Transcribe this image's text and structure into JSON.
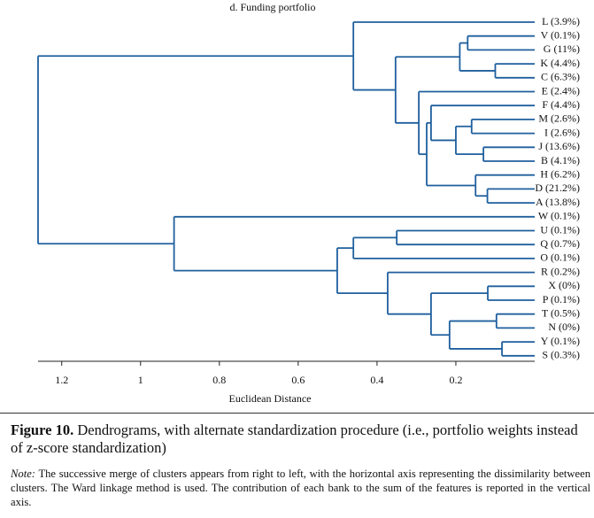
{
  "chart_data": {
    "type": "dendrogram",
    "title": "d. Funding portfolio",
    "xlabel": "Euclidean Distance",
    "color": "#1f5f9e",
    "orientation": "right-to-left",
    "xlim": [
      1.26,
      0
    ],
    "xticks": [
      1.2,
      1,
      0.8,
      0.6,
      0.4,
      0.2
    ],
    "tree": {
      "height": 1.26,
      "children": [
        {
          "height": 0.46,
          "children": [
            {
              "label": "L (3.9%)"
            },
            {
              "height": 0.353,
              "children": [
                {
                  "height": 0.19,
                  "children": [
                    {
                      "height": 0.17,
                      "children": [
                        {
                          "label": "V (0.1%)"
                        },
                        {
                          "label": "G (11%)"
                        }
                      ]
                    },
                    {
                      "height": 0.1,
                      "children": [
                        {
                          "label": "K (4.4%)"
                        },
                        {
                          "label": "C (6.3%)"
                        }
                      ]
                    }
                  ]
                },
                {
                  "height": 0.294,
                  "children": [
                    {
                      "label": "E (2.4%)"
                    },
                    {
                      "height": 0.274,
                      "children": [
                        {
                          "height": 0.263,
                          "children": [
                            {
                              "label": "F (4.4%)"
                            },
                            {
                              "height": 0.2,
                              "children": [
                                {
                                  "height": 0.16,
                                  "children": [
                                    {
                                      "label": "M (2.6%)"
                                    },
                                    {
                                      "label": "I (2.6%)"
                                    }
                                  ]
                                },
                                {
                                  "height": 0.13,
                                  "children": [
                                    {
                                      "label": "J (13.6%)"
                                    },
                                    {
                                      "label": "B (4.1%)"
                                    }
                                  ]
                                }
                              ]
                            }
                          ]
                        },
                        {
                          "height": 0.15,
                          "children": [
                            {
                              "label": "H (6.2%)"
                            },
                            {
                              "height": 0.12,
                              "children": [
                                {
                                  "label": "D (21.2%)"
                                },
                                {
                                  "label": "A (13.8%)"
                                }
                              ]
                            }
                          ]
                        }
                      ]
                    }
                  ]
                }
              ]
            }
          ]
        },
        {
          "height": 0.915,
          "children": [
            {
              "label": "W (0.1%)"
            },
            {
              "height": 0.501,
              "children": [
                {
                  "height": 0.46,
                  "children": [
                    {
                      "height": 0.35,
                      "children": [
                        {
                          "label": "U (0.1%)"
                        },
                        {
                          "label": "Q (0.7%)"
                        }
                      ]
                    },
                    {
                      "label": "O (0.1%)"
                    }
                  ]
                },
                {
                  "height": 0.373,
                  "children": [
                    {
                      "label": "R (0.2%)"
                    },
                    {
                      "height": 0.263,
                      "children": [
                        {
                          "height": 0.119,
                          "children": [
                            {
                              "label": "X (0%)"
                            },
                            {
                              "label": "P (0.1%)"
                            }
                          ]
                        },
                        {
                          "height": 0.216,
                          "children": [
                            {
                              "height": 0.097,
                              "children": [
                                {
                                  "label": "T (0.5%)"
                                },
                                {
                                  "label": "N (0%)"
                                }
                              ]
                            },
                            {
                              "height": 0.083,
                              "children": [
                                {
                                  "label": "Y (0.1%)"
                                },
                                {
                                  "label": "S (0.3%)"
                                }
                              ]
                            }
                          ]
                        }
                      ]
                    }
                  ]
                }
              ]
            }
          ]
        }
      ]
    }
  },
  "caption": {
    "label": "Figure 10.",
    "text": "Dendrograms, with alternate standardization procedure (i.e., portfolio weights instead of z-score standardization)"
  },
  "note": {
    "label": "Note:",
    "text": "The successive merge of clusters appears from right to left, with the horizontal axis representing the dissimilarity between clusters. The Ward linkage method is used. The contribution of each bank to the sum of the features is reported in the vertical axis."
  }
}
